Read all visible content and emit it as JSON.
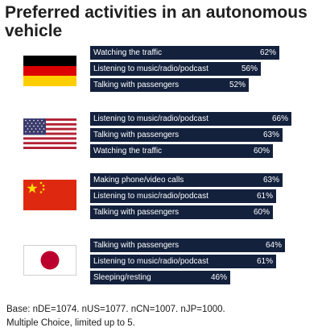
{
  "title": "Preferred activities in an autonomous vehicle",
  "footnote": {
    "line1": "Base: nDE=1074. nUS=1077. nCN=1007. nJP=1000.",
    "line2": "Multiple Choice, limited up to 5."
  },
  "chart_data": {
    "type": "bar",
    "title": "Preferred activities in an autonomous vehicle",
    "unit": "%",
    "xlim": [
      0,
      66
    ],
    "groups": [
      {
        "flag": "germany-flag-icon",
        "bars": [
          {
            "label": "Watching the traffic",
            "value": 62,
            "display": "62%"
          },
          {
            "label": "Listening to music/radio/podcast",
            "value": 56,
            "display": "56%"
          },
          {
            "label": "Talking with passengers",
            "value": 52,
            "display": "52%"
          }
        ]
      },
      {
        "flag": "usa-flag-icon",
        "bars": [
          {
            "label": "Listening to music/radio/podcast",
            "value": 66,
            "display": "66%"
          },
          {
            "label": "Talking with passengers",
            "value": 63,
            "display": "63%"
          },
          {
            "label": "Watching the traffic",
            "value": 60,
            "display": "60%"
          }
        ]
      },
      {
        "flag": "china-flag-icon",
        "bars": [
          {
            "label": "Making phone/video calls",
            "value": 63,
            "display": "63%"
          },
          {
            "label": "Listening to music/radio/podcast",
            "value": 61,
            "display": "61%"
          },
          {
            "label": "Talking with passengers",
            "value": 60,
            "display": "60%"
          }
        ]
      },
      {
        "flag": "japan-flag-icon",
        "bars": [
          {
            "label": "Talking with passengers",
            "value": 64,
            "display": "64%"
          },
          {
            "label": "Listening to music/radio/podcast",
            "value": 61,
            "display": "61%"
          },
          {
            "label": "Sleeping/resting",
            "value": 46,
            "display": "46%"
          }
        ]
      }
    ],
    "colors": {
      "bar": "#13213d",
      "bar_text": "#ffffff"
    }
  }
}
